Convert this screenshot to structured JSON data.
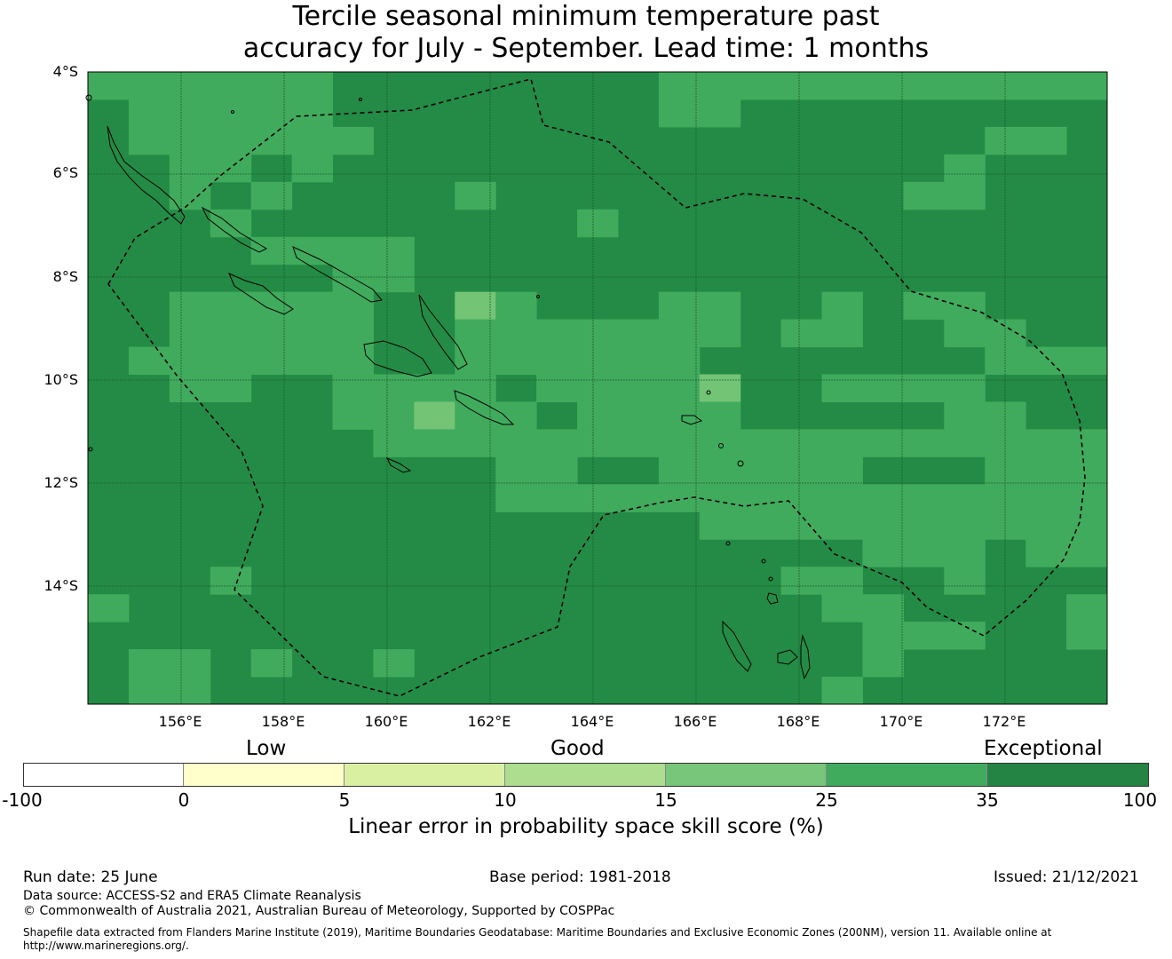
{
  "title": {
    "line1": "Tercile seasonal minimum temperature past",
    "line2": "accuracy for July - September. Lead time: 1 months"
  },
  "map": {
    "lat_labels": [
      "4°S",
      "6°S",
      "8°S",
      "10°S",
      "12°S",
      "14°S"
    ],
    "lon_labels": [
      "156°E",
      "158°E",
      "160°E",
      "162°E",
      "164°E",
      "166°E",
      "168°E",
      "170°E",
      "172°E"
    ],
    "background_color": "#238b45",
    "grid_legend": {
      "E": "#41ab5d",
      "L": "#74c476"
    },
    "grid": [
      "EEEEEEDDDDDDDDEEEEEEEEEEE",
      "DEEEEEDDDDDDDDEEDDDDDDDDD",
      "DEEEEEEDDDDDDDDDDDDDDDEED",
      "DDEEDEDDDDDDDDDDDDDDDEDDD",
      "DDEDEDDDDEDDDDDDDDDDEEDDD",
      "DDDEDDDDDDDDEDDDDDDDDDDDD",
      "DDDDEEEEDDDDDDDDDDDDDDDDD",
      "DDDDDDEEDDDDDDDDDDDDDDDDD",
      "DDEEEEEDDLEDDDEEDDEDEEDDD",
      "DDEEEEEDDEEEEEEEDEEDDEEDD",
      "DEEEEEEDDEEEEEEDDDDDDDEEE",
      "DDEEDDEEEEDEEEELDDEEEEDDD",
      "DDDDDDEELEEDEEEEDDDDDEEDD",
      "DDDDDDDEEEEEEEEEEEEEEEEEE",
      "DDDDDDDDDDEEDDEEEEEDDDEEE",
      "DDDDDDDDDDEEEEEEEEEEEEEEE",
      "DDDDDDDDDDDDDDDEEEEEEEEEE",
      "DDDDDDDDDDDDDDDDDDDEEEDEE",
      "DDDEDDDDDDDDDDDDDEEDDEDDD",
      "EDDDDDDDDDDDDDDDDDEEDDDDE",
      "DDDDDDDDDDDDDDDDDDDEEEDDE",
      "DEEDEDDEDDDDDDDDDDDEDDDDD",
      "DEEDDDDDDDDDDDDDDDEDDDDDD"
    ]
  },
  "colorbar": {
    "low_label": "Low",
    "good_label": "Good",
    "exceptional_label": "Exceptional",
    "segments": [
      {
        "from": -100,
        "to": 0,
        "color": "#ffffff"
      },
      {
        "from": 0,
        "to": 5,
        "color": "#ffffcc"
      },
      {
        "from": 5,
        "to": 10,
        "color": "#d9f0a3"
      },
      {
        "from": 10,
        "to": 15,
        "color": "#addd8e"
      },
      {
        "from": 15,
        "to": 25,
        "color": "#78c679"
      },
      {
        "from": 25,
        "to": 35,
        "color": "#41ab5d"
      },
      {
        "from": 35,
        "to": 100,
        "color": "#238443"
      }
    ],
    "ticks": [
      "-100",
      "0",
      "5",
      "10",
      "15",
      "25",
      "35",
      "100"
    ],
    "label": "Linear error in probability space skill score (%)"
  },
  "footer": {
    "run_date": "Run date: 25 June",
    "base_period": "Base period: 1981-2018",
    "issued": "Issued: 21/12/2021",
    "data_source": "Data source: ACCESS-S2 and ERA5 Climate Reanalysis",
    "copyright": "© Commonwealth of Australia 2021, Australian Bureau of Meteorology, Supported by COSPPac",
    "shapefile_line1": "Shapefile data extracted from Flanders Marine Institute (2019), Maritime Boundaries Geodatabase: Maritime Boundaries and Exclusive Economic Zones (200NM), version 11. Available online at",
    "shapefile_line2": "http://www.marineregions.org/."
  }
}
